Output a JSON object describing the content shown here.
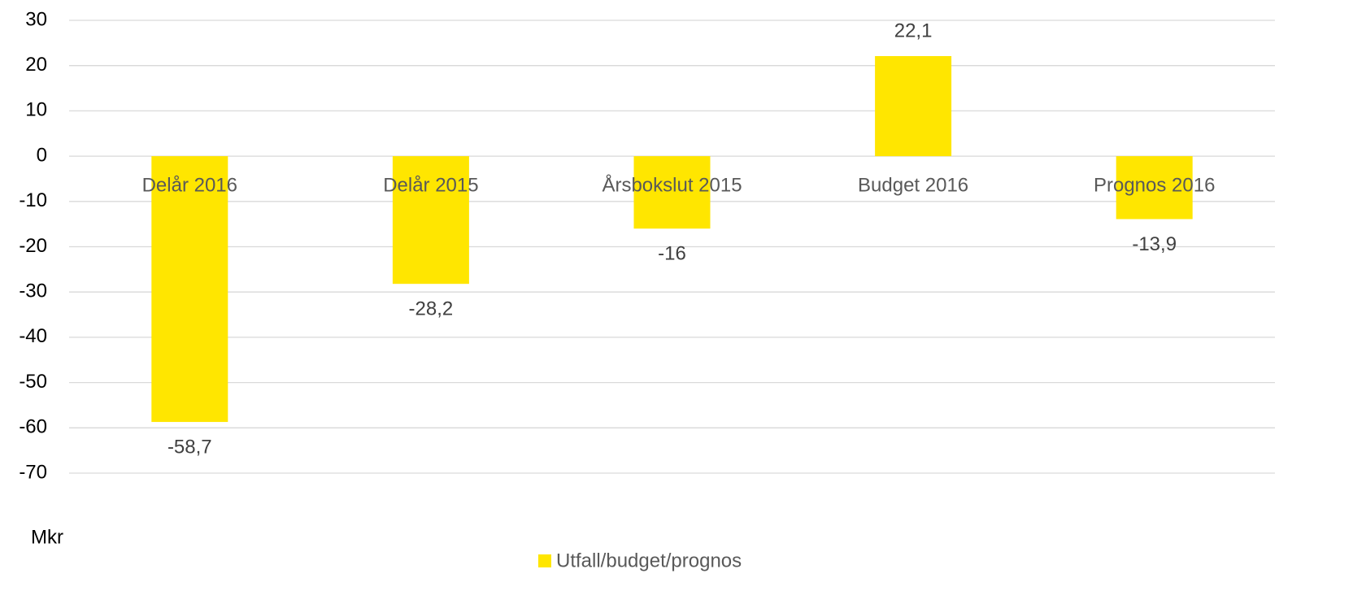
{
  "chart_data": {
    "type": "bar",
    "y_label": "Mkr",
    "categories": [
      "Delår 2016",
      "Delår 2015",
      "Årsbokslut 2015",
      "Budget 2016",
      "Prognos 2016"
    ],
    "series": [
      {
        "name": "Utfall/budget/prognos",
        "color": "#FFE600",
        "values": [
          -58.7,
          -28.2,
          -16,
          22.1,
          -13.9
        ],
        "value_labels": [
          "-58,7",
          "-28,2",
          "-16",
          "22,1",
          "-13,9"
        ]
      }
    ],
    "ylim": [
      -70,
      30
    ],
    "yticks": [
      -70,
      -60,
      -50,
      -40,
      -30,
      -20,
      -10,
      0,
      10,
      20,
      30
    ],
    "grid": true,
    "legend": "bottom"
  }
}
